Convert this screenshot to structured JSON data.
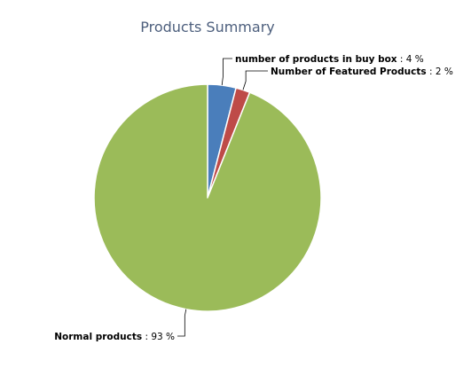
{
  "chart_data": {
    "type": "pie",
    "title": "Products Summary",
    "slices": [
      {
        "label": "number of products in buy box",
        "value": 4,
        "display": "4 %",
        "color": "#4a7ebb"
      },
      {
        "label": "Number of Featured Products",
        "value": 2,
        "display": "2 %",
        "color": "#be4b48"
      },
      {
        "label": "Normal products",
        "value": 93,
        "display": "93 %",
        "color": "#9bbb59"
      }
    ]
  }
}
